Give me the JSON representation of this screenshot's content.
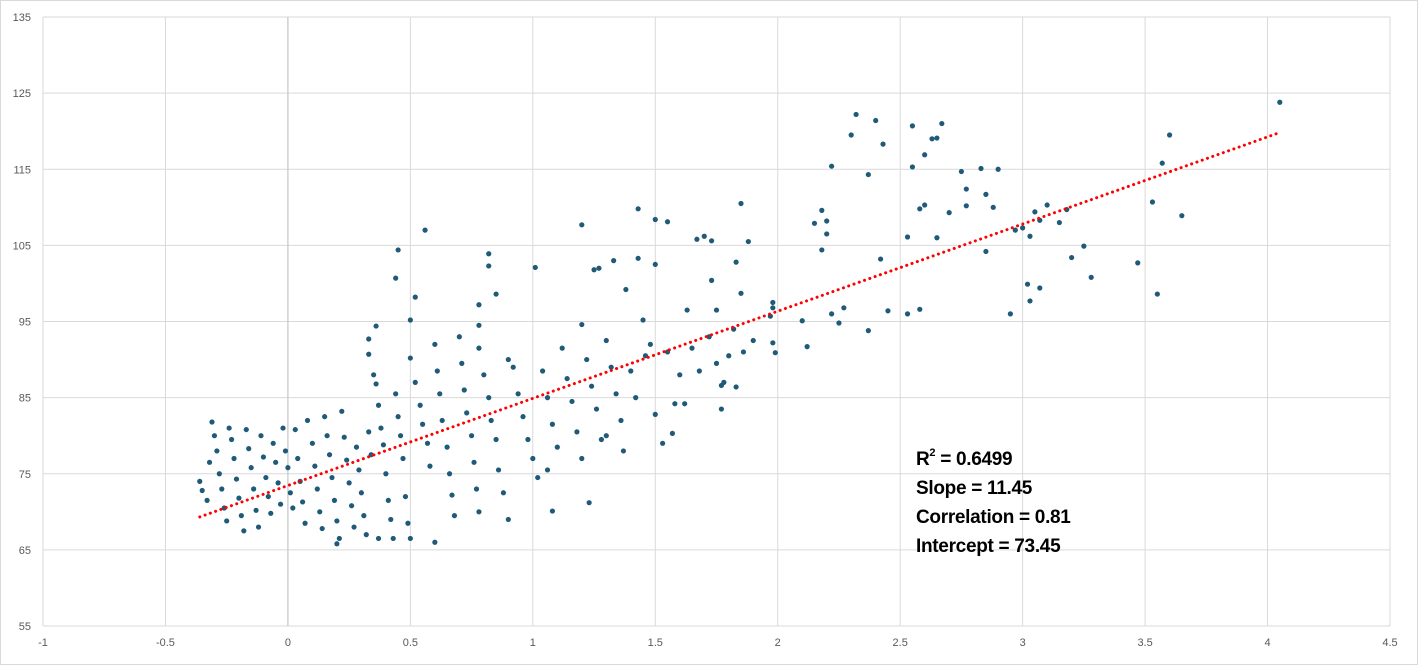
{
  "chart_data": {
    "type": "scatter",
    "title": "",
    "xlabel": "",
    "ylabel": "",
    "xlim": [
      -1,
      4.5
    ],
    "ylim": [
      55,
      135
    ],
    "xticks": [
      "-1",
      "-0.5",
      "0",
      "0.5",
      "1",
      "1.5",
      "2",
      "2.5",
      "3",
      "3.5",
      "4",
      "4.5"
    ],
    "yticks": [
      "55",
      "65",
      "75",
      "85",
      "95",
      "105",
      "115",
      "125",
      "135"
    ],
    "grid": true,
    "legend": "none",
    "colors": {
      "points": "#1f5a78",
      "trendline": "#ff0000",
      "grid": "#d9d9d9"
    },
    "trendline": {
      "style": "dotted",
      "slope": 11.45,
      "intercept": 73.45,
      "x_range": [
        -0.36,
        4.05
      ]
    },
    "annotations": {
      "r2_label": "R",
      "r2_sup": "2",
      "r2_value": " = 0.6499",
      "slope": "Slope = 11.45",
      "correlation": "Correlation = 0.81",
      "intercept": "Intercept = 73.45"
    },
    "points": [
      [
        4.05,
        123.8
      ],
      [
        3.6,
        119.5
      ],
      [
        3.57,
        115.8
      ],
      [
        3.53,
        110.7
      ],
      [
        3.55,
        98.6
      ],
      [
        3.65,
        108.9
      ],
      [
        3.47,
        102.7
      ],
      [
        3.28,
        100.8
      ],
      [
        3.25,
        104.9
      ],
      [
        3.2,
        103.4
      ],
      [
        3.18,
        109.7
      ],
      [
        3.15,
        108
      ],
      [
        3.1,
        110.3
      ],
      [
        3.05,
        109.4
      ],
      [
        3.07,
        108.3
      ],
      [
        3.03,
        106.2
      ],
      [
        3,
        107.3
      ],
      [
        3.02,
        99.9
      ],
      [
        3.03,
        97.7
      ],
      [
        3.07,
        99.4
      ],
      [
        2.95,
        96
      ],
      [
        2.97,
        107
      ],
      [
        2.9,
        115
      ],
      [
        2.88,
        110
      ],
      [
        2.85,
        104.2
      ],
      [
        2.83,
        115.1
      ],
      [
        2.85,
        111.7
      ],
      [
        2.77,
        110.2
      ],
      [
        2.75,
        114.7
      ],
      [
        2.77,
        112.4
      ],
      [
        2.7,
        109.3
      ],
      [
        2.67,
        121
      ],
      [
        2.65,
        119.1
      ],
      [
        2.63,
        119
      ],
      [
        2.6,
        116.9
      ],
      [
        2.6,
        110.3
      ],
      [
        2.58,
        109.8
      ],
      [
        2.55,
        115.3
      ],
      [
        2.55,
        120.7
      ],
      [
        2.53,
        106.1
      ],
      [
        2.53,
        96
      ],
      [
        2.58,
        96.6
      ],
      [
        2.65,
        106
      ],
      [
        2.43,
        118.3
      ],
      [
        2.4,
        121.4
      ],
      [
        2.37,
        114.3
      ],
      [
        2.32,
        122.2
      ],
      [
        2.3,
        119.5
      ],
      [
        2.37,
        93.8
      ],
      [
        2.45,
        96.4
      ],
      [
        2.42,
        103.2
      ],
      [
        2.25,
        94.8
      ],
      [
        2.27,
        96.8
      ],
      [
        2.22,
        96
      ],
      [
        2.22,
        115.4
      ],
      [
        2.2,
        108.2
      ],
      [
        2.18,
        104.4
      ],
      [
        2.18,
        109.6
      ],
      [
        2.2,
        106.5
      ],
      [
        2.15,
        107.9
      ],
      [
        2.12,
        91.7
      ],
      [
        2.1,
        95.1
      ],
      [
        1.98,
        96.8
      ],
      [
        1.98,
        97.5
      ],
      [
        1.97,
        95.7
      ],
      [
        1.98,
        92.2
      ],
      [
        1.99,
        90.9
      ],
      [
        1.88,
        105.5
      ],
      [
        1.85,
        110.5
      ],
      [
        1.83,
        102.8
      ],
      [
        1.85,
        98.7
      ],
      [
        1.8,
        90.5
      ],
      [
        1.83,
        86.4
      ],
      [
        1.77,
        83.5
      ],
      [
        1.77,
        86.6
      ],
      [
        1.75,
        96.5
      ],
      [
        1.73,
        100.4
      ],
      [
        1.73,
        105.6
      ],
      [
        1.7,
        106.2
      ],
      [
        1.67,
        105.8
      ],
      [
        1.63,
        96.5
      ],
      [
        1.62,
        84.2
      ],
      [
        1.57,
        80.3
      ],
      [
        1.58,
        84.2
      ],
      [
        1.55,
        108.1
      ],
      [
        1.5,
        108.4
      ],
      [
        1.5,
        102.5
      ],
      [
        1.43,
        109.8
      ],
      [
        1.43,
        103.3
      ],
      [
        1.45,
        95.2
      ],
      [
        1.48,
        92
      ],
      [
        1.38,
        99.2
      ],
      [
        1.33,
        103
      ],
      [
        1.27,
        102
      ],
      [
        1.25,
        101.8
      ],
      [
        1.2,
        107.7
      ],
      [
        1.2,
        94.6
      ],
      [
        1.37,
        78
      ],
      [
        1.3,
        80
      ],
      [
        1.23,
        71.2
      ],
      [
        1.08,
        70.1
      ],
      [
        1.06,
        75.5
      ],
      [
        1.01,
        102.1
      ],
      [
        0.9,
        90
      ],
      [
        0.85,
        98.6
      ],
      [
        0.82,
        102.3
      ],
      [
        0.82,
        103.9
      ],
      [
        0.78,
        97.2
      ],
      [
        0.78,
        94.5
      ],
      [
        0.78,
        91.5
      ],
      [
        0.56,
        107
      ],
      [
        0.45,
        104.4
      ],
      [
        0.44,
        100.7
      ],
      [
        0.52,
        98.2
      ],
      [
        0.5,
        95.2
      ],
      [
        0.36,
        94.4
      ],
      [
        0.33,
        92.7
      ],
      [
        0.33,
        90.7
      ],
      [
        0.6,
        66
      ],
      [
        0.5,
        66.5
      ],
      [
        0.2,
        65.8
      ],
      [
        0.37,
        66.5
      ],
      [
        -0.36,
        74
      ],
      [
        -0.35,
        72.8
      ],
      [
        -0.33,
        71.5
      ],
      [
        -0.32,
        76.5
      ],
      [
        -0.31,
        81.8
      ],
      [
        -0.3,
        80
      ],
      [
        -0.29,
        78
      ],
      [
        -0.28,
        75
      ],
      [
        -0.27,
        73
      ],
      [
        -0.26,
        70.5
      ],
      [
        -0.25,
        68.8
      ],
      [
        -0.24,
        81
      ],
      [
        -0.23,
        79.5
      ],
      [
        -0.22,
        77
      ],
      [
        -0.21,
        74.3
      ],
      [
        -0.2,
        71.8
      ],
      [
        -0.19,
        69.5
      ],
      [
        -0.18,
        67.5
      ],
      [
        -0.17,
        80.8
      ],
      [
        -0.16,
        78.3
      ],
      [
        -0.15,
        75.8
      ],
      [
        -0.14,
        73
      ],
      [
        -0.13,
        70.2
      ],
      [
        -0.12,
        68
      ],
      [
        -0.11,
        80
      ],
      [
        -0.1,
        77.2
      ],
      [
        -0.09,
        74.5
      ],
      [
        -0.08,
        72
      ],
      [
        -0.07,
        69.8
      ],
      [
        -0.06,
        79
      ],
      [
        -0.05,
        76.5
      ],
      [
        -0.04,
        73.8
      ],
      [
        -0.03,
        71
      ],
      [
        -0.02,
        81
      ],
      [
        -0.01,
        78
      ],
      [
        0,
        75.8
      ],
      [
        0.01,
        72.5
      ],
      [
        0.02,
        70.5
      ],
      [
        0.03,
        80.8
      ],
      [
        0.04,
        77
      ],
      [
        0.05,
        74
      ],
      [
        0.06,
        71.3
      ],
      [
        0.07,
        68.5
      ],
      [
        0.08,
        82
      ],
      [
        0.1,
        79
      ],
      [
        0.11,
        76
      ],
      [
        0.12,
        73
      ],
      [
        0.13,
        70
      ],
      [
        0.14,
        67.8
      ],
      [
        0.15,
        82.5
      ],
      [
        0.16,
        80
      ],
      [
        0.17,
        77.5
      ],
      [
        0.18,
        74.5
      ],
      [
        0.19,
        71.5
      ],
      [
        0.2,
        68.8
      ],
      [
        0.21,
        66.5
      ],
      [
        0.22,
        83.2
      ],
      [
        0.23,
        79.8
      ],
      [
        0.24,
        76.8
      ],
      [
        0.25,
        73.8
      ],
      [
        0.26,
        70.8
      ],
      [
        0.27,
        68
      ],
      [
        0.28,
        78.5
      ],
      [
        0.29,
        75.5
      ],
      [
        0.3,
        72.5
      ],
      [
        0.31,
        69.5
      ],
      [
        0.32,
        67
      ],
      [
        0.33,
        80.5
      ],
      [
        0.34,
        77.5
      ],
      [
        0.35,
        88
      ],
      [
        0.36,
        86.8
      ],
      [
        0.37,
        84
      ],
      [
        0.38,
        81
      ],
      [
        0.39,
        78.8
      ],
      [
        0.4,
        75
      ],
      [
        0.41,
        71.5
      ],
      [
        0.42,
        69
      ],
      [
        0.43,
        66.5
      ],
      [
        0.44,
        85.5
      ],
      [
        0.45,
        82.5
      ],
      [
        0.46,
        80
      ],
      [
        0.47,
        77
      ],
      [
        0.48,
        72
      ],
      [
        0.49,
        68.5
      ],
      [
        0.5,
        90.2
      ],
      [
        0.52,
        87
      ],
      [
        0.54,
        84
      ],
      [
        0.55,
        81.5
      ],
      [
        0.57,
        79
      ],
      [
        0.58,
        76
      ],
      [
        0.6,
        92
      ],
      [
        0.61,
        88.5
      ],
      [
        0.62,
        85.5
      ],
      [
        0.63,
        82
      ],
      [
        0.65,
        78.5
      ],
      [
        0.66,
        75
      ],
      [
        0.67,
        72.2
      ],
      [
        0.68,
        69.5
      ],
      [
        0.7,
        93
      ],
      [
        0.71,
        89.5
      ],
      [
        0.72,
        86
      ],
      [
        0.73,
        83
      ],
      [
        0.75,
        80
      ],
      [
        0.76,
        76.5
      ],
      [
        0.77,
        73
      ],
      [
        0.78,
        70
      ],
      [
        0.8,
        88
      ],
      [
        0.82,
        85
      ],
      [
        0.83,
        82
      ],
      [
        0.85,
        79.5
      ],
      [
        0.86,
        75.5
      ],
      [
        0.88,
        72.5
      ],
      [
        0.9,
        69
      ],
      [
        0.92,
        89
      ],
      [
        0.94,
        85.5
      ],
      [
        0.96,
        82.5
      ],
      [
        0.98,
        79.5
      ],
      [
        1,
        77
      ],
      [
        1.02,
        74.5
      ],
      [
        1.04,
        88.5
      ],
      [
        1.06,
        85
      ],
      [
        1.08,
        81.5
      ],
      [
        1.1,
        78.5
      ],
      [
        1.12,
        91.5
      ],
      [
        1.14,
        87.5
      ],
      [
        1.16,
        84.5
      ],
      [
        1.18,
        80.5
      ],
      [
        1.2,
        77
      ],
      [
        1.22,
        90
      ],
      [
        1.24,
        86.5
      ],
      [
        1.26,
        83.5
      ],
      [
        1.28,
        79.5
      ],
      [
        1.3,
        92.5
      ],
      [
        1.32,
        89
      ],
      [
        1.34,
        85.5
      ],
      [
        1.36,
        82
      ],
      [
        1.4,
        88.5
      ],
      [
        1.42,
        85
      ],
      [
        1.46,
        90.5
      ],
      [
        1.5,
        82.8
      ],
      [
        1.53,
        79
      ],
      [
        1.55,
        91
      ],
      [
        1.6,
        88
      ],
      [
        1.65,
        91.5
      ],
      [
        1.68,
        88.5
      ],
      [
        1.72,
        93
      ],
      [
        1.75,
        89.5
      ],
      [
        1.78,
        87
      ],
      [
        1.82,
        94
      ],
      [
        1.86,
        91
      ],
      [
        1.9,
        92.5
      ]
    ]
  }
}
